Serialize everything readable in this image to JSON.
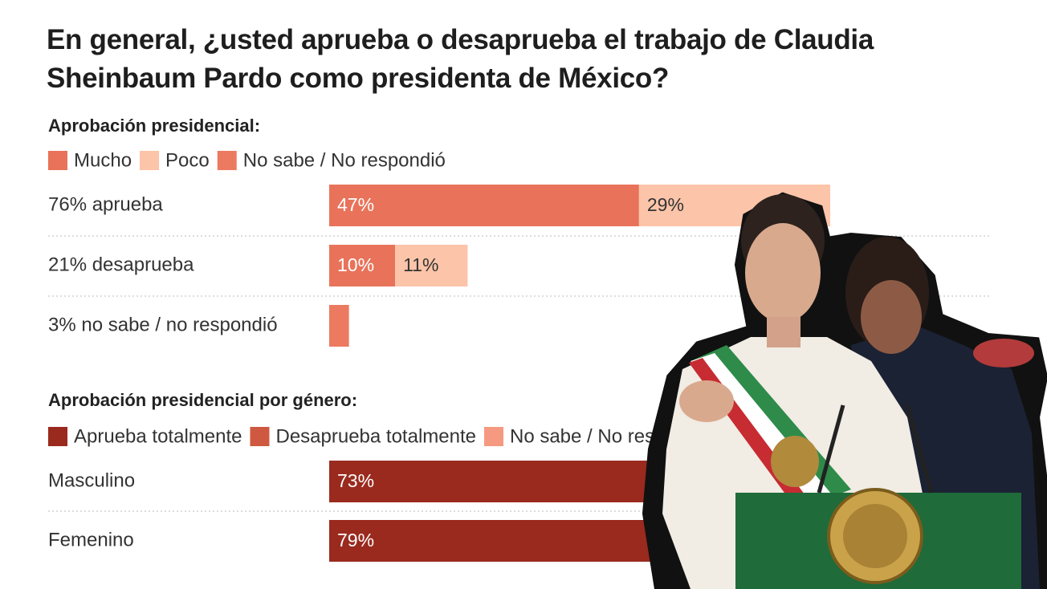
{
  "chart_data": [
    {
      "type": "bar",
      "orientation": "horizontal",
      "stacked": true,
      "title": "En general, ¿usted aprueba o desaprueba el trabajo de Claudia Sheinbaum Pardo como presidenta de México?",
      "subtitle": "Aprobación presidencial:",
      "categories": [
        "76% aprueba",
        "21% desaprueba",
        "3% no sabe / no respondió"
      ],
      "series": [
        {
          "name": "Mucho",
          "color": "#e8735a",
          "values": [
            47,
            10,
            null
          ],
          "value_labels": [
            "47%",
            "10%",
            null
          ]
        },
        {
          "name": "Poco",
          "color": "#fcc4a9",
          "values": [
            29,
            11,
            null
          ],
          "value_labels": [
            "29%",
            "11%",
            null
          ]
        },
        {
          "name": "No sabe / No respondió",
          "color": "#ec7a60",
          "values": [
            null,
            null,
            3
          ]
        }
      ],
      "xlim": [
        0,
        100
      ]
    },
    {
      "type": "bar",
      "orientation": "horizontal",
      "stacked": true,
      "subtitle": "Aprobación presidencial por género:",
      "categories": [
        "Masculino",
        "Femenino"
      ],
      "series": [
        {
          "name": "Aprueba totalmente",
          "color": "#9a2a1e",
          "values": [
            73,
            79
          ],
          "value_labels": [
            "73%",
            "79%"
          ]
        },
        {
          "name": "Desaprueba totalmente",
          "color": "#cf5840",
          "values": [
            null,
            null
          ]
        },
        {
          "name": "No sabe / No respondió",
          "color": "#f59a80",
          "values": [
            null,
            null
          ]
        }
      ],
      "xlim": [
        0,
        100
      ]
    }
  ]
}
